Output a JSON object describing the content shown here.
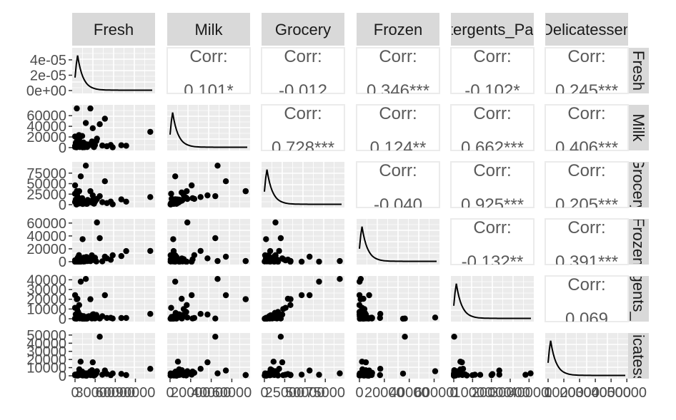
{
  "chart_data": {
    "type": "scatter-matrix",
    "variables": [
      "Fresh",
      "Milk",
      "Grocery",
      "Frozen",
      "Detergents_Paper",
      "Delicatessen"
    ],
    "corr_label": "Corr:",
    "correlations": [
      {
        "row": 0,
        "col": 1,
        "value": "0.101*"
      },
      {
        "row": 0,
        "col": 2,
        "value": "-0.012"
      },
      {
        "row": 0,
        "col": 3,
        "value": "0.346***"
      },
      {
        "row": 0,
        "col": 4,
        "value": "-0.102*"
      },
      {
        "row": 0,
        "col": 5,
        "value": "0.245***"
      },
      {
        "row": 1,
        "col": 2,
        "value": "0.728***"
      },
      {
        "row": 1,
        "col": 3,
        "value": "0.124**"
      },
      {
        "row": 1,
        "col": 4,
        "value": "0.662***"
      },
      {
        "row": 1,
        "col": 5,
        "value": "0.406***"
      },
      {
        "row": 2,
        "col": 3,
        "value": "-0.040"
      },
      {
        "row": 2,
        "col": 4,
        "value": "0.925***"
      },
      {
        "row": 2,
        "col": 5,
        "value": "0.205***"
      },
      {
        "row": 3,
        "col": 4,
        "value": "-0.132**"
      },
      {
        "row": 3,
        "col": 5,
        "value": "0.391***"
      },
      {
        "row": 4,
        "col": 5,
        "value": "0.069"
      }
    ],
    "ranges": [
      [
        0,
        115000
      ],
      [
        0,
        75000
      ],
      [
        0,
        95000
      ],
      [
        0,
        62000
      ],
      [
        0,
        41000
      ],
      [
        0,
        49000
      ]
    ],
    "y_ticks": [
      {
        "labels": [
          "0e+00",
          "2e-05",
          "4e-05"
        ],
        "values": [
          0,
          2e-05,
          4e-05
        ],
        "ylim": [
          0,
          5.2e-05
        ]
      },
      {
        "labels": [
          "0",
          "20000",
          "40000",
          "60000"
        ],
        "values": [
          0,
          20000,
          40000,
          60000
        ]
      },
      {
        "labels": [
          "0",
          "25000",
          "50000",
          "75000"
        ],
        "values": [
          0,
          25000,
          50000,
          75000
        ]
      },
      {
        "labels": [
          "0",
          "20000",
          "40000",
          "60000"
        ],
        "values": [
          0,
          20000,
          40000,
          60000
        ]
      },
      {
        "labels": [
          "0",
          "10000",
          "20000",
          "30000",
          "40000"
        ],
        "values": [
          0,
          10000,
          20000,
          30000,
          40000
        ]
      },
      {
        "labels": [
          "0",
          "10000",
          "20000",
          "30000",
          "40000",
          "50000"
        ],
        "values": [
          0,
          10000,
          20000,
          30000,
          40000,
          50000
        ]
      }
    ],
    "x_ticks": [
      {
        "labels": [
          "0",
          "30000",
          "60000",
          "90000"
        ],
        "values": [
          0,
          30000,
          60000,
          90000
        ]
      },
      {
        "labels": [
          "0",
          "20000",
          "40000",
          "60000"
        ],
        "values": [
          0,
          20000,
          40000,
          60000
        ]
      },
      {
        "labels": [
          "0",
          "25000",
          "50000",
          "75000"
        ],
        "values": [
          0,
          25000,
          50000,
          75000
        ]
      },
      {
        "labels": [
          "0",
          "20000",
          "40000",
          "60000"
        ],
        "values": [
          0,
          20000,
          40000,
          60000
        ]
      },
      {
        "labels": [
          "0",
          "10000",
          "20000",
          "30000",
          "40000"
        ],
        "values": [
          0,
          10000,
          20000,
          30000,
          40000
        ]
      },
      {
        "labels": [
          "0",
          "10000",
          "20000",
          "30000",
          "40000",
          "50000"
        ],
        "values": [
          0,
          10000,
          20000,
          30000,
          40000,
          50000
        ]
      }
    ],
    "sample_points": [
      [
        12669,
        9656,
        7561,
        214,
        2674,
        1338
      ],
      [
        7057,
        9810,
        9568,
        1762,
        3293,
        1776
      ],
      [
        6353,
        8808,
        7684,
        2405,
        3516,
        7844
      ],
      [
        13265,
        1196,
        4221,
        6404,
        507,
        1788
      ],
      [
        22615,
        5410,
        7198,
        3915,
        1777,
        5185
      ],
      [
        9413,
        8259,
        5126,
        666,
        1795,
        1451
      ],
      [
        3366,
        5403,
        12974,
        4400,
        5977,
        1744
      ],
      [
        31714,
        12319,
        11757,
        287,
        3881,
        2931
      ],
      [
        3067,
        13240,
        23127,
        3941,
        9959,
        731
      ],
      [
        27380,
        7184,
        12311,
        2809,
        4621,
        1022
      ],
      [
        112151,
        29627,
        18148,
        16745,
        4948,
        8550
      ],
      [
        2612,
        73498,
        32114,
        987,
        20070,
        903
      ],
      [
        36847,
        43950,
        20170,
        36534,
        239,
        47943
      ],
      [
        22925,
        73498,
        32114,
        987,
        20070,
        903
      ],
      [
        26373,
        36423,
        22019,
        5154,
        4337,
        16523
      ],
      [
        44466,
        54259,
        55571,
        7782,
        24171,
        6465
      ],
      [
        85,
        20959,
        45828,
        36,
        24231,
        1423
      ],
      [
        16117,
        46197,
        92780,
        1026,
        40827,
        2944
      ],
      [
        4591,
        15729,
        16709,
        33,
        6956,
        433
      ],
      [
        3,
        2920,
        6252,
        440,
        223,
        709
      ],
      [
        76237,
        3473,
        7102,
        16538,
        778,
        918
      ],
      [
        32717,
        16784,
        13626,
        60869,
        1272,
        5609
      ],
      [
        68951,
        4411,
        12609,
        8692,
        751,
        2406
      ],
      [
        56159,
        555,
        902,
        10002,
        212,
        2916
      ],
      [
        53205,
        4959,
        7336,
        3012,
        967,
        818
      ],
      [
        29729,
        4786,
        7326,
        6130,
        361,
        1083
      ],
      [
        16936,
        6250,
        1981,
        7332,
        118,
        64
      ],
      [
        28257,
        944,
        2146,
        3881,
        600,
        270
      ],
      [
        40721,
        3916,
        5876,
        532,
        2587,
        1278
      ],
      [
        48,
        1048,
        26030,
        2148,
        11232,
        1300
      ],
      [
        20782,
        5921,
        9212,
        1759,
        2568,
        1553
      ],
      [
        10683,
        21858,
        15400,
        3635,
        282,
        5120
      ],
      [
        25203,
        11487,
        9490,
        5065,
        284,
        6854
      ],
      [
        5909,
        23527,
        13699,
        10155,
        830,
        3636
      ],
      [
        18044,
        1080,
        2000,
        2555,
        118,
        1266
      ],
      [
        8565,
        4980,
        67298,
        131,
        38102,
        1215
      ],
      [
        7107,
        1012,
        2974,
        806,
        355,
        1166
      ],
      [
        1020,
        8816,
        12121,
        134,
        4508,
        1080
      ],
      [
        25066,
        5010,
        5026,
        9806,
        1092,
        960
      ],
      [
        9218,
        1562,
        14087,
        1099,
        1900,
        2218
      ],
      [
        4040,
        3795,
        2070,
        6340,
        918,
        291
      ],
      [
        3537,
        11234,
        28921,
        3185,
        20522,
        2133
      ],
      [
        6187,
        16154,
        32044,
        16,
        14035,
        1102
      ],
      [
        11314,
        3090,
        2062,
        35009,
        71,
        2698
      ],
      [
        47493,
        2567,
        3779,
        5243,
        828,
        2253
      ],
      [
        18815,
        3610,
        11107,
        1148,
        2134,
        2963
      ],
      [
        2101,
        589,
        314,
        346,
        70,
        310
      ],
      [
        14276,
        803,
        3045,
        485,
        100,
        518
      ],
      [
        8290,
        7657,
        11238,
        2063,
        3530,
        17340
      ],
      [
        11405,
        596,
        1638,
        3347,
        69,
        360
      ]
    ],
    "density_curve_shape": "right-skewed peak near zero, long tail to max",
    "facet_strip_color": "#d9d9d9",
    "panel_background": "#ebebeb",
    "point_color": "#000000"
  }
}
